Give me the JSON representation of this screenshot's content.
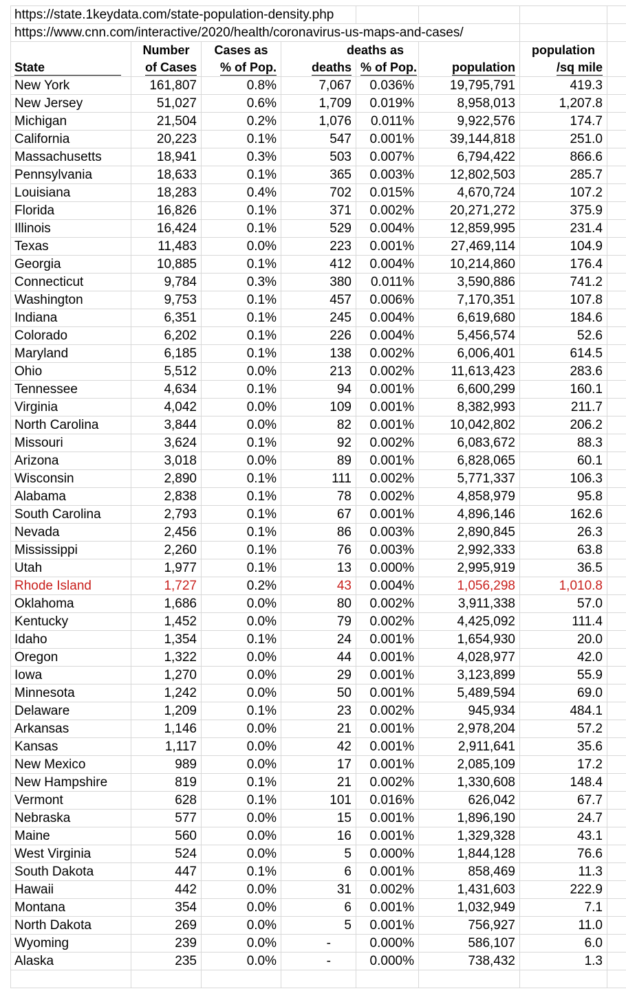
{
  "urls": [
    "https://state.1keydata.com/state-population-density.php",
    "https://www.cnn.com/interactive/2020/health/coronavirus-us-maps-and-cases/"
  ],
  "header": {
    "row1": [
      "Number",
      "Cases as",
      "deaths as",
      "population"
    ],
    "row2": [
      "State",
      "of Cases",
      "% of Pop.",
      "deaths",
      "% of Pop.",
      "population",
      "/sq mile"
    ]
  },
  "highlight": {
    "row": 28,
    "color": "#c9211e"
  },
  "table": {
    "rows": [
      [
        "New York",
        "161,807",
        "0.8%",
        "7,067",
        "0.036%",
        "19,795,791",
        "419.3"
      ],
      [
        "New Jersey",
        "51,027",
        "0.6%",
        "1,709",
        "0.019%",
        "8,958,013",
        "1,207.8"
      ],
      [
        "Michigan",
        "21,504",
        "0.2%",
        "1,076",
        "0.011%",
        "9,922,576",
        "174.7"
      ],
      [
        "California",
        "20,223",
        "0.1%",
        "547",
        "0.001%",
        "39,144,818",
        "251.0"
      ],
      [
        "Massachusetts",
        "18,941",
        "0.3%",
        "503",
        "0.007%",
        "6,794,422",
        "866.6"
      ],
      [
        "Pennsylvania",
        "18,633",
        "0.1%",
        "365",
        "0.003%",
        "12,802,503",
        "285.7"
      ],
      [
        "Louisiana",
        "18,283",
        "0.4%",
        "702",
        "0.015%",
        "4,670,724",
        "107.2"
      ],
      [
        "Florida",
        "16,826",
        "0.1%",
        "371",
        "0.002%",
        "20,271,272",
        "375.9"
      ],
      [
        "Illinois",
        "16,424",
        "0.1%",
        "529",
        "0.004%",
        "12,859,995",
        "231.4"
      ],
      [
        "Texas",
        "11,483",
        "0.0%",
        "223",
        "0.001%",
        "27,469,114",
        "104.9"
      ],
      [
        "Georgia",
        "10,885",
        "0.1%",
        "412",
        "0.004%",
        "10,214,860",
        "176.4"
      ],
      [
        "Connecticut",
        "9,784",
        "0.3%",
        "380",
        "0.011%",
        "3,590,886",
        "741.2"
      ],
      [
        "Washington",
        "9,753",
        "0.1%",
        "457",
        "0.006%",
        "7,170,351",
        "107.8"
      ],
      [
        "Indiana",
        "6,351",
        "0.1%",
        "245",
        "0.004%",
        "6,619,680",
        "184.6"
      ],
      [
        "Colorado",
        "6,202",
        "0.1%",
        "226",
        "0.004%",
        "5,456,574",
        "52.6"
      ],
      [
        "Maryland",
        "6,185",
        "0.1%",
        "138",
        "0.002%",
        "6,006,401",
        "614.5"
      ],
      [
        "Ohio",
        "5,512",
        "0.0%",
        "213",
        "0.002%",
        "11,613,423",
        "283.6"
      ],
      [
        "Tennessee",
        "4,634",
        "0.1%",
        "94",
        "0.001%",
        "6,600,299",
        "160.1"
      ],
      [
        "Virginia",
        "4,042",
        "0.0%",
        "109",
        "0.001%",
        "8,382,993",
        "211.7"
      ],
      [
        "North Carolina",
        "3,844",
        "0.0%",
        "82",
        "0.001%",
        "10,042,802",
        "206.2"
      ],
      [
        "Missouri",
        "3,624",
        "0.1%",
        "92",
        "0.002%",
        "6,083,672",
        "88.3"
      ],
      [
        "Arizona",
        "3,018",
        "0.0%",
        "89",
        "0.001%",
        "6,828,065",
        "60.1"
      ],
      [
        "Wisconsin",
        "2,890",
        "0.1%",
        "111",
        "0.002%",
        "5,771,337",
        "106.3"
      ],
      [
        "Alabama",
        "2,838",
        "0.1%",
        "78",
        "0.002%",
        "4,858,979",
        "95.8"
      ],
      [
        "South Carolina",
        "2,793",
        "0.1%",
        "67",
        "0.001%",
        "4,896,146",
        "162.6"
      ],
      [
        "Nevada",
        "2,456",
        "0.1%",
        "86",
        "0.003%",
        "2,890,845",
        "26.3"
      ],
      [
        "Mississippi",
        "2,260",
        "0.1%",
        "76",
        "0.003%",
        "2,992,333",
        "63.8"
      ],
      [
        "Utah",
        "1,977",
        "0.1%",
        "13",
        "0.000%",
        "2,995,919",
        "36.5"
      ],
      [
        "Rhode Island",
        "1,727",
        "0.2%",
        "43",
        "0.004%",
        "1,056,298",
        "1,010.8"
      ],
      [
        "Oklahoma",
        "1,686",
        "0.0%",
        "80",
        "0.002%",
        "3,911,338",
        "57.0"
      ],
      [
        "Kentucky",
        "1,452",
        "0.0%",
        "79",
        "0.002%",
        "4,425,092",
        "111.4"
      ],
      [
        "Idaho",
        "1,354",
        "0.1%",
        "24",
        "0.001%",
        "1,654,930",
        "20.0"
      ],
      [
        "Oregon",
        "1,322",
        "0.0%",
        "44",
        "0.001%",
        "4,028,977",
        "42.0"
      ],
      [
        "Iowa",
        "1,270",
        "0.0%",
        "29",
        "0.001%",
        "3,123,899",
        "55.9"
      ],
      [
        "Minnesota",
        "1,242",
        "0.0%",
        "50",
        "0.001%",
        "5,489,594",
        "69.0"
      ],
      [
        "Delaware",
        "1,209",
        "0.1%",
        "23",
        "0.002%",
        "945,934",
        "484.1"
      ],
      [
        "Arkansas",
        "1,146",
        "0.0%",
        "21",
        "0.001%",
        "2,978,204",
        "57.2"
      ],
      [
        "Kansas",
        "1,117",
        "0.0%",
        "42",
        "0.001%",
        "2,911,641",
        "35.6"
      ],
      [
        "New Mexico",
        "989",
        "0.0%",
        "17",
        "0.001%",
        "2,085,109",
        "17.2"
      ],
      [
        "New Hampshire",
        "819",
        "0.1%",
        "21",
        "0.002%",
        "1,330,608",
        "148.4"
      ],
      [
        "Vermont",
        "628",
        "0.1%",
        "101",
        "0.016%",
        "626,042",
        "67.7"
      ],
      [
        "Nebraska",
        "577",
        "0.0%",
        "15",
        "0.001%",
        "1,896,190",
        "24.7"
      ],
      [
        "Maine",
        "560",
        "0.0%",
        "16",
        "0.001%",
        "1,329,328",
        "43.1"
      ],
      [
        "West Virginia",
        "524",
        "0.0%",
        "5",
        "0.000%",
        "1,844,128",
        "76.6"
      ],
      [
        "South Dakota",
        "447",
        "0.1%",
        "6",
        "0.001%",
        "858,469",
        "11.3"
      ],
      [
        "Hawaii",
        "442",
        "0.0%",
        "31",
        "0.002%",
        "1,431,603",
        "222.9"
      ],
      [
        "Montana",
        "354",
        "0.0%",
        "6",
        "0.001%",
        "1,032,949",
        "7.1"
      ],
      [
        "North Dakota",
        "269",
        "0.0%",
        "5",
        "0.001%",
        "756,927",
        "11.0"
      ],
      [
        "Wyoming",
        "239",
        "0.0%",
        "-",
        "0.000%",
        "586,107",
        "6.0"
      ],
      [
        "Alaska",
        "235",
        "0.0%",
        "-",
        "0.000%",
        "738,432",
        "1.3"
      ]
    ]
  }
}
